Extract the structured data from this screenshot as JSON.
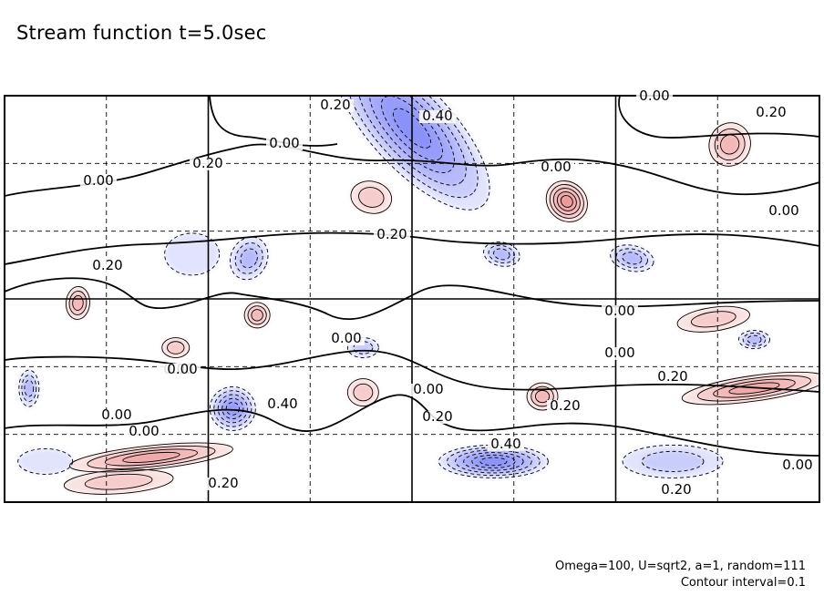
{
  "title": "Stream function t=5.0sec",
  "notes": {
    "params": "Omega=100, U=sqrt2, a=1, random=111",
    "interval": "Contour interval=0.1"
  },
  "colors": {
    "positive": "#e05050",
    "negative": "#4a55f0",
    "line": "#000000",
    "grid": "#000000"
  },
  "chart_data": {
    "type": "heatmap",
    "variable": "Stream function",
    "time": "t=5.0sec",
    "contour_interval": 0.1,
    "zero_contour": "solid",
    "negative_contours": "dashed",
    "color_scale": "red positive, blue negative, white near zero",
    "grid": true,
    "contour_labels": [
      "0.20",
      "0.40",
      "0.00",
      "0.20",
      "0.00",
      "0.20",
      "0.20",
      "0.00",
      "0.00",
      "0.00",
      "0.00",
      "0.00",
      "0.00",
      "0.00",
      "0.00",
      "0.00",
      "0.20",
      "0.00",
      "0.20",
      "0.20",
      "0.20",
      "0.40",
      "0.20",
      "0.20",
      "0.00",
      "0.40",
      "0.00"
    ],
    "features": [
      {
        "x": 0.5,
        "y": 0.92,
        "value": -0.6
      },
      {
        "x": 0.69,
        "y": 0.74,
        "value": 0.5
      },
      {
        "x": 0.45,
        "y": 0.75,
        "value": 0.2
      },
      {
        "x": 0.89,
        "y": 0.88,
        "value": 0.3
      },
      {
        "x": 0.3,
        "y": 0.6,
        "value": -0.3
      },
      {
        "x": 0.61,
        "y": 0.61,
        "value": -0.3
      },
      {
        "x": 0.77,
        "y": 0.6,
        "value": -0.3
      },
      {
        "x": 0.09,
        "y": 0.49,
        "value": 0.3
      },
      {
        "x": 0.31,
        "y": 0.46,
        "value": 0.3
      },
      {
        "x": 0.87,
        "y": 0.45,
        "value": 0.2
      },
      {
        "x": 0.92,
        "y": 0.4,
        "value": -0.3
      },
      {
        "x": 0.44,
        "y": 0.38,
        "value": -0.2
      },
      {
        "x": 0.21,
        "y": 0.38,
        "value": 0.2
      },
      {
        "x": 0.28,
        "y": 0.23,
        "value": -0.5
      },
      {
        "x": 0.44,
        "y": 0.27,
        "value": 0.2
      },
      {
        "x": 0.66,
        "y": 0.26,
        "value": 0.3
      },
      {
        "x": 0.92,
        "y": 0.28,
        "value": 0.4
      },
      {
        "x": 0.03,
        "y": 0.28,
        "value": -0.3
      },
      {
        "x": 0.18,
        "y": 0.11,
        "value": 0.4
      },
      {
        "x": 0.14,
        "y": 0.05,
        "value": 0.2
      },
      {
        "x": 0.6,
        "y": 0.1,
        "value": -0.6
      },
      {
        "x": 0.82,
        "y": 0.1,
        "value": -0.2
      },
      {
        "x": 0.23,
        "y": 0.61,
        "value": -0.1
      },
      {
        "x": 0.05,
        "y": 0.1,
        "value": -0.1
      }
    ]
  }
}
